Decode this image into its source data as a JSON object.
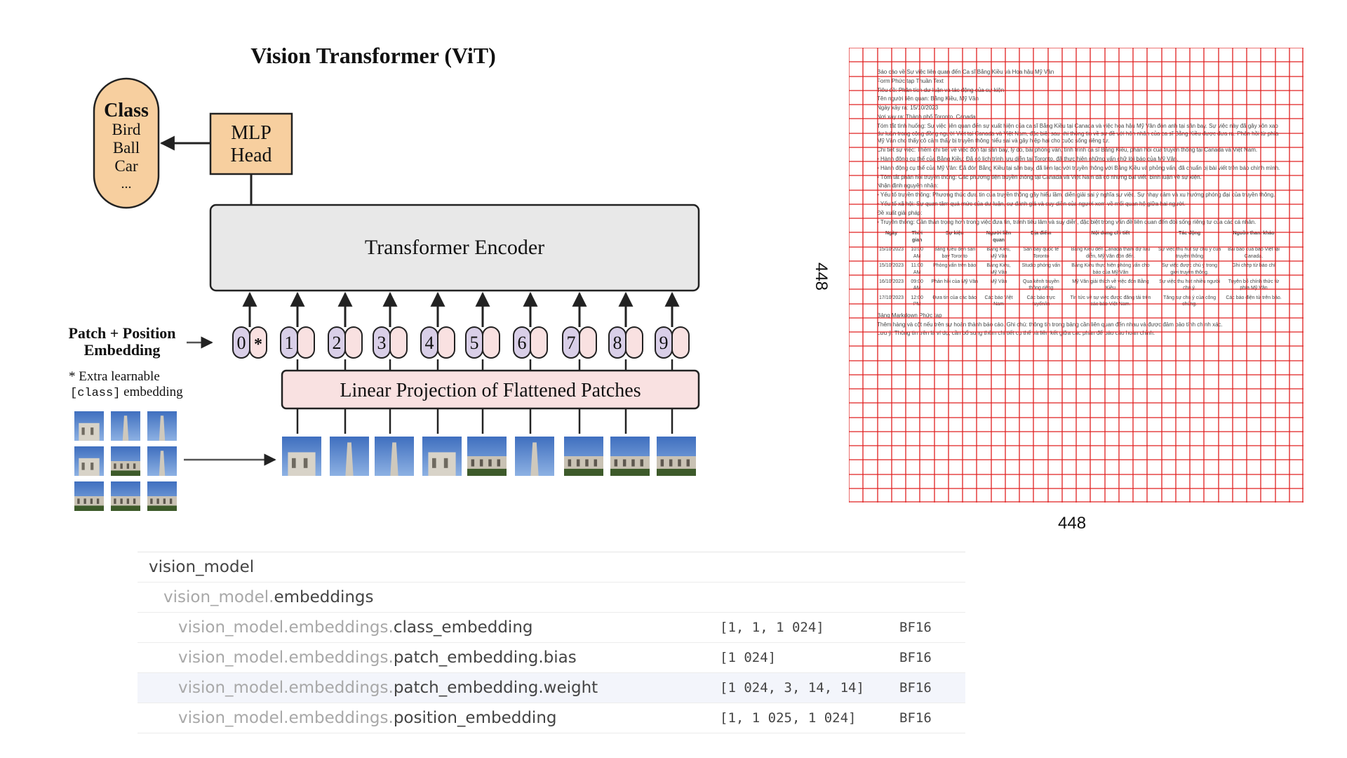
{
  "diagram": {
    "title": "Vision Transformer (ViT)",
    "class_box": {
      "header": "Class",
      "items": [
        "Bird",
        "Ball",
        "Car",
        "..."
      ]
    },
    "mlp_head": [
      "MLP",
      "Head"
    ],
    "encoder_label": "Transformer Encoder",
    "embedding_label": [
      "Patch + Position",
      "Embedding"
    ],
    "extra_note_1": "* Extra learnable",
    "extra_note_2_code": "[class]",
    "extra_note_2_rest": " embedding",
    "tokens": [
      "0",
      "1",
      "2",
      "3",
      "4",
      "5",
      "6",
      "7",
      "8",
      "9"
    ],
    "class_token_marker": "*",
    "projection_label": "Linear Projection of Flattened Patches",
    "colors": {
      "mlp": "#f7cf9f",
      "encoder": "#e8e8e8",
      "projection": "#f9e1e1",
      "token": "#d9cfe8",
      "pos": "#f9e1e1",
      "patch_sky": "#4a78c4"
    }
  },
  "doc_image": {
    "width_label": "448",
    "height_label": "448",
    "grid_color": "#e02020",
    "lines": [
      "Báo cáo về Sự việc liên quan đến Ca sĩ Bằng Kiều và Hoa hậu Mỹ Vân",
      "Form Phức tạp Thuần Text",
      "Tiêu đề: Phân tích dư luận và tác động của sự kiện",
      "Tên người liên quan: Bằng Kiều, Mỹ Vân",
      "Ngày xảy ra: 15/10/2023",
      "Nơi xảy ra: Thành phố Toronto, Canada",
      "Tóm tắt tình huống: Sự việc liên quan đến sự xuất hiện của ca sĩ Bằng Kiều tại Canada và việc hoa hậu Mỹ Vân đón anh tại sân bay. Sự việc này đã gây xôn xao dư luận trong cộng đồng người Việt tại Canada và Việt Nam, đặc biệt sau khi thông tin về sự đề với hôn nhân của ca sĩ Bằng Kiều được đưa ra. Phản hồi từ phía Mỹ Vân cho thấy cô cảm thấy bị truyền thông hiểu sai và gây hiệp hại cho cuộc sống riêng tư.",
      "Chi tiết sự việc: Thêm chi tiết về việc đón tại sân bay, lý do, bài phỏng vấn, tình trình ca sĩ Bằng Kiều, phản hồi của truyền thông tại Canada và Việt Nam.",
      "• Hành động cụ thể của Bằng Kiều: Đã có lịch trình lưu diễn tại Toronto, đã thực hiện những vấn chữ lời báo của Mỹ Vân.",
      "• Hành động cụ thể của Mỹ Vân: Đã đón Bằng Kiều tại sân bay, đã liên lạc với truyền thông với Bằng Kiều và phỏng vấn, đã chuẩn bị bài viết trên báo chính mình.",
      "• Tôm tắt phản hồi truyền thông: Các phương tiện truyền thông tại Canada và Việt Nam đã có những bài viết, bình luận về sự kiện.",
      "Nhận định nguyên nhân:",
      "• Yếu tố truyền thông: Phương thức đưa tin của truyền thông gây hiểu lầm, diễn giải sai ý nghĩa sự việc. Sự nhạy cảm và xu hướng phóng đại của truyền thông.",
      "• Yếu tố xã hội: Sự quan tâm quá mức của dư luận, sự đánh giá và suy diễn của người xem về mối quan hệ giữa hai người.",
      "Đề xuất giải pháp:",
      "• Truyền thông: Cần thận trọng hơn trong việc đưa tin, tránh tiêu lâm và suy diễn, đặc biệt trong vấn đề liên quan đến đời sống riêng tư của các cá nhân.",
      "Bảng Markdown Phức tạp",
      "Thêm hàng và cột nếu trên sự hoàn thành báo cáo. Ghi chú: thông tin trong bảng cần liên quan đến nhau và được đảm bảo tính chính xác.",
      "Lưu ý: Thông tin trên là ví dụ, cần bổ sung thêm chi tiết cụ thể và liên kết giữa các phần để báo cáo hoàn chỉnh."
    ],
    "table_header": [
      "Ngày",
      "Thời gian",
      "Sự kiện",
      "Người liên quan",
      "Địa điểm",
      "Nội dung chi tiết",
      "Tác động",
      "Nguồn tham khảo"
    ],
    "table_rows": [
      [
        "15/10/2023",
        "10:00 AM",
        "Bằng Kiều đến sân bay Toronto",
        "Bằng Kiều, Mỹ Vân",
        "Sân bay quốc tế Toronto",
        "Bằng Kiều đến Canada tham dự lưu diễn, Mỹ Vân đón đến.",
        "Sự việc thu hút sự chú ý của truyền thông",
        "Bài báo của báo Việt tại Canada."
      ],
      [
        "15/10/2023",
        "11:00 AM",
        "Phỏng vấn trên báo",
        "Bằng Kiều, Mỹ Vân",
        "Studio phỏng vấn",
        "Bằng Kiều thực hiện phỏng vấn cho báo của Mỹ Vân",
        "Sự việc được chú ý trong giới truyền thông.",
        "Ghi chép từ báo chí"
      ],
      [
        "16/10/2023",
        "09:00 AM",
        "Phản hồi của Mỹ Vân",
        "Mỹ Vân",
        "Qua kênh truyền thông riêng",
        "Mỹ Vân giải thích về việc đón Bằng Kiều",
        "Sự việc thu hút nhiều người chú ý.",
        "Tuyên bố chính thức từ phía Mỹ Vân"
      ],
      [
        "17/10/2023",
        "12:00 PM",
        "Đưa tin của các báo",
        "Các báo Việt Nam",
        "Các báo trực tuyến/in",
        "Tin tức về sự việc được đăng tải trên các báo Việt Nam.",
        "Tăng sự chú ý của công chúng.",
        "Các báo điện tử trên báo."
      ]
    ]
  },
  "tensor_table": {
    "rows": [
      {
        "prefix": "",
        "name": "vision_model",
        "shape": "",
        "dtype": "",
        "indent": 0
      },
      {
        "prefix": "vision_model.",
        "name": "embeddings",
        "shape": "",
        "dtype": "",
        "indent": 1
      },
      {
        "prefix": "vision_model.embeddings.",
        "name": "class_embedding",
        "shape": "[1, 1, 1 024]",
        "dtype": "BF16",
        "indent": 2
      },
      {
        "prefix": "vision_model.embeddings.",
        "name": "patch_embedding.bias",
        "shape": "[1 024]",
        "dtype": "BF16",
        "indent": 2
      },
      {
        "prefix": "vision_model.embeddings.",
        "name": "patch_embedding.weight",
        "shape": "[1 024, 3, 14, 14]",
        "dtype": "BF16",
        "indent": 2,
        "highlight": true
      },
      {
        "prefix": "vision_model.embeddings.",
        "name": "position_embedding",
        "shape": "[1, 1 025, 1 024]",
        "dtype": "BF16",
        "indent": 2
      }
    ]
  }
}
